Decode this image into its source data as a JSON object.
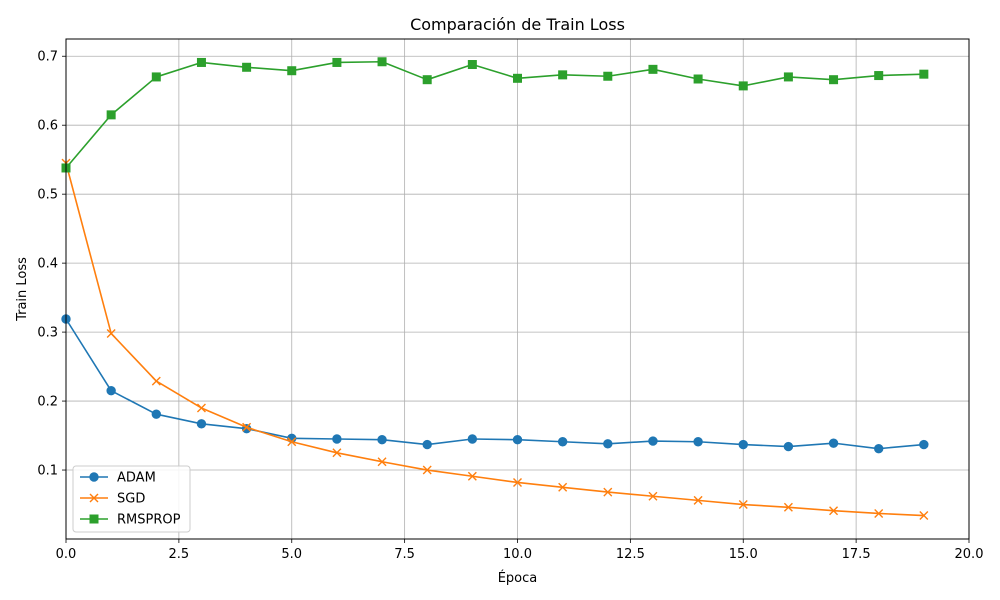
{
  "chart_data": {
    "type": "line",
    "title": "Comparación de Train Loss",
    "xlabel": "Época",
    "ylabel": "Train Loss",
    "xlim": [
      0,
      20
    ],
    "ylim": [
      0.0,
      0.725
    ],
    "xticks": [
      0,
      2.5,
      5,
      7.5,
      10,
      12.5,
      15,
      17.5,
      20
    ],
    "xtick_labels": [
      "0.0",
      "2.5",
      "5.0",
      "7.5",
      "10.0",
      "12.5",
      "15.0",
      "17.5",
      "20.0"
    ],
    "yticks": [
      0.1,
      0.2,
      0.3,
      0.4,
      0.5,
      0.6,
      0.7
    ],
    "ytick_labels": [
      "0.1",
      "0.2",
      "0.3",
      "0.4",
      "0.5",
      "0.6",
      "0.7"
    ],
    "grid": true,
    "legend_position": "lower-left",
    "x": [
      0,
      1,
      2,
      3,
      4,
      5,
      6,
      7,
      8,
      9,
      10,
      11,
      12,
      13,
      14,
      15,
      16,
      17,
      18,
      19
    ],
    "series": [
      {
        "name": "ADAM",
        "color": "#1f77b4",
        "marker": "circle",
        "values": [
          0.319,
          0.215,
          0.181,
          0.167,
          0.16,
          0.146,
          0.145,
          0.144,
          0.137,
          0.145,
          0.144,
          0.141,
          0.138,
          0.142,
          0.141,
          0.137,
          0.134,
          0.139,
          0.131,
          0.137
        ]
      },
      {
        "name": "SGD",
        "color": "#ff7f0e",
        "marker": "x",
        "values": [
          0.545,
          0.298,
          0.229,
          0.19,
          0.162,
          0.141,
          0.125,
          0.112,
          0.1,
          0.091,
          0.082,
          0.075,
          0.068,
          0.062,
          0.056,
          0.05,
          0.046,
          0.041,
          0.037,
          0.034
        ]
      },
      {
        "name": "RMSPROP",
        "color": "#2ca02c",
        "marker": "square",
        "values": [
          0.538,
          0.615,
          0.67,
          0.691,
          0.684,
          0.679,
          0.691,
          0.692,
          0.666,
          0.688,
          0.668,
          0.673,
          0.671,
          0.681,
          0.667,
          0.657,
          0.67,
          0.666,
          0.672,
          0.674
        ]
      }
    ]
  }
}
